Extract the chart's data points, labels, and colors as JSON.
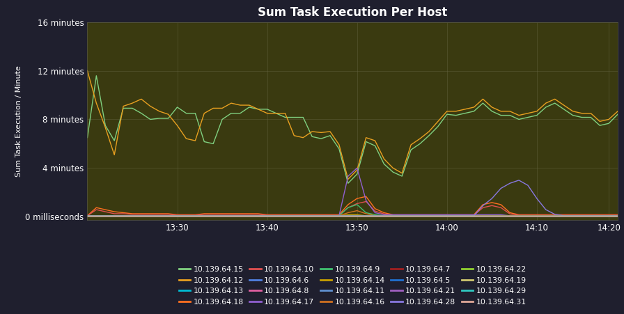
{
  "title": "Sum Task Execution Per Host",
  "ylabel": "Sum Task Execution / Minute",
  "background_color": "#1f1f2e",
  "plot_bg_color": "#3a3a10",
  "text_color": "#ffffff",
  "grid_color": "#666644",
  "yticks": [
    0,
    240,
    480,
    720,
    960
  ],
  "ytick_labels": [
    "0 milliseconds",
    "4 minutes",
    "8 minutes",
    "12 minutes",
    "16 minutes"
  ],
  "xtick_labels": [
    "13:30",
    "13:40",
    "13:50",
    "14:00",
    "14:10",
    "14:20"
  ],
  "xtick_pos": [
    10,
    20,
    30,
    40,
    50,
    58
  ],
  "xlim": [
    0,
    59
  ],
  "ylim": [
    -15,
    960
  ],
  "hosts": [
    {
      "label": "10.139.64.15",
      "color": "#80d080"
    },
    {
      "label": "10.139.64.12",
      "color": "#e8a020"
    },
    {
      "label": "10.139.64.13",
      "color": "#00bcd4"
    },
    {
      "label": "10.139.64.18",
      "color": "#ff7020"
    },
    {
      "label": "10.139.64.10",
      "color": "#e05050"
    },
    {
      "label": "10.139.64.6",
      "color": "#5080e0"
    },
    {
      "label": "10.139.64.8",
      "color": "#e060a0"
    },
    {
      "label": "10.139.64.17",
      "color": "#9060d0"
    },
    {
      "label": "10.139.64.9",
      "color": "#40c070"
    },
    {
      "label": "10.139.64.14",
      "color": "#c8a000"
    },
    {
      "label": "10.139.64.11",
      "color": "#6090d0"
    },
    {
      "label": "10.139.64.16",
      "color": "#d07020"
    },
    {
      "label": "10.139.64.7",
      "color": "#a02020"
    },
    {
      "label": "10.139.64.5",
      "color": "#2070d0"
    },
    {
      "label": "10.139.64.21",
      "color": "#a060c0"
    },
    {
      "label": "10.139.64.28",
      "color": "#8878e0"
    },
    {
      "label": "10.139.64.22",
      "color": "#90d030"
    },
    {
      "label": "10.139.64.19",
      "color": "#d0c870"
    },
    {
      "label": "10.139.64.29",
      "color": "#30c8c0"
    },
    {
      "label": "10.139.64.31",
      "color": "#e0a898"
    }
  ],
  "series": {
    "10.139.64.15": [
      390,
      695,
      450,
      375,
      535,
      535,
      510,
      480,
      485,
      485,
      540,
      510,
      510,
      370,
      360,
      480,
      510,
      510,
      540,
      530,
      530,
      510,
      490,
      490,
      490,
      395,
      385,
      400,
      335,
      165,
      210,
      370,
      350,
      260,
      220,
      200,
      330,
      360,
      400,
      445,
      505,
      500,
      510,
      520,
      560,
      520,
      500,
      500,
      480,
      490,
      500,
      540,
      560,
      530,
      500,
      490,
      490,
      450,
      460,
      505
    ],
    "10.139.64.12": [
      720,
      560,
      440,
      305,
      545,
      560,
      580,
      545,
      520,
      505,
      450,
      385,
      375,
      510,
      535,
      535,
      560,
      550,
      550,
      530,
      510,
      510,
      510,
      400,
      390,
      420,
      415,
      420,
      355,
      185,
      230,
      390,
      375,
      285,
      240,
      215,
      355,
      385,
      420,
      470,
      520,
      520,
      530,
      540,
      580,
      540,
      520,
      520,
      500,
      510,
      520,
      560,
      580,
      550,
      520,
      510,
      510,
      470,
      480,
      520
    ],
    "10.139.64.13": [
      5,
      5,
      5,
      5,
      5,
      5,
      5,
      5,
      5,
      5,
      5,
      5,
      5,
      5,
      5,
      5,
      5,
      5,
      5,
      5,
      5,
      5,
      5,
      5,
      5,
      5,
      5,
      5,
      5,
      5,
      5,
      5,
      5,
      5,
      5,
      5,
      5,
      5,
      5,
      5,
      5,
      5,
      5,
      5,
      5,
      5,
      5,
      5,
      5,
      5,
      5,
      5,
      5,
      5,
      5,
      5,
      5,
      5,
      5,
      5
    ],
    "10.139.64.18": [
      5,
      45,
      35,
      25,
      20,
      15,
      15,
      15,
      15,
      15,
      10,
      10,
      10,
      15,
      15,
      15,
      15,
      15,
      15,
      15,
      10,
      10,
      10,
      10,
      10,
      10,
      10,
      10,
      10,
      60,
      90,
      100,
      40,
      20,
      10,
      10,
      10,
      10,
      10,
      10,
      10,
      10,
      10,
      10,
      60,
      70,
      60,
      20,
      10,
      10,
      10,
      10,
      10,
      10,
      10,
      10,
      10,
      10,
      10,
      10
    ],
    "10.139.64.10": [
      5,
      35,
      25,
      15,
      15,
      12,
      12,
      12,
      12,
      12,
      8,
      8,
      8,
      12,
      12,
      12,
      12,
      12,
      12,
      12,
      8,
      8,
      8,
      8,
      8,
      8,
      8,
      8,
      8,
      45,
      65,
      75,
      28,
      14,
      8,
      8,
      8,
      8,
      8,
      8,
      8,
      8,
      8,
      8,
      45,
      55,
      45,
      14,
      8,
      8,
      8,
      8,
      8,
      8,
      8,
      8,
      8,
      8,
      8,
      8
    ],
    "10.139.64.6": [
      5,
      5,
      5,
      5,
      5,
      5,
      5,
      5,
      5,
      5,
      5,
      5,
      5,
      5,
      5,
      5,
      5,
      5,
      5,
      5,
      5,
      5,
      5,
      5,
      5,
      5,
      5,
      5,
      5,
      5,
      5,
      5,
      5,
      5,
      5,
      5,
      5,
      5,
      5,
      5,
      5,
      5,
      5,
      5,
      5,
      5,
      5,
      5,
      5,
      5,
      5,
      5,
      5,
      5,
      5,
      5,
      5,
      5,
      5,
      5
    ],
    "10.139.64.8": [
      5,
      5,
      5,
      5,
      5,
      5,
      5,
      5,
      5,
      5,
      5,
      5,
      5,
      5,
      5,
      5,
      5,
      5,
      5,
      5,
      5,
      5,
      5,
      5,
      5,
      5,
      5,
      5,
      5,
      5,
      5,
      5,
      5,
      5,
      5,
      5,
      5,
      5,
      5,
      5,
      5,
      5,
      5,
      5,
      5,
      5,
      5,
      5,
      5,
      5,
      5,
      5,
      5,
      5,
      5,
      5,
      5,
      5,
      5,
      5
    ],
    "10.139.64.17": [
      5,
      5,
      5,
      5,
      5,
      5,
      5,
      5,
      5,
      5,
      5,
      5,
      5,
      5,
      5,
      5,
      5,
      5,
      5,
      5,
      5,
      5,
      5,
      5,
      5,
      5,
      5,
      5,
      5,
      200,
      240,
      80,
      20,
      10,
      10,
      10,
      10,
      10,
      10,
      10,
      10,
      10,
      10,
      10,
      10,
      10,
      10,
      5,
      5,
      5,
      5,
      5,
      5,
      5,
      5,
      5,
      5,
      5,
      5,
      5
    ],
    "10.139.64.9": [
      5,
      5,
      5,
      5,
      5,
      5,
      5,
      5,
      5,
      5,
      5,
      5,
      5,
      5,
      5,
      5,
      5,
      5,
      5,
      5,
      5,
      5,
      5,
      5,
      5,
      5,
      5,
      5,
      5,
      45,
      60,
      20,
      10,
      5,
      5,
      5,
      5,
      5,
      5,
      5,
      5,
      5,
      5,
      5,
      5,
      5,
      5,
      5,
      5,
      5,
      5,
      5,
      5,
      5,
      5,
      5,
      5,
      5,
      5,
      5
    ],
    "10.139.64.14": [
      5,
      5,
      5,
      5,
      5,
      5,
      5,
      5,
      5,
      5,
      5,
      5,
      5,
      5,
      5,
      5,
      5,
      5,
      5,
      5,
      5,
      5,
      5,
      5,
      5,
      5,
      5,
      5,
      5,
      10,
      10,
      5,
      5,
      5,
      5,
      5,
      5,
      5,
      5,
      5,
      5,
      5,
      5,
      5,
      5,
      5,
      5,
      5,
      5,
      5,
      5,
      5,
      5,
      5,
      5,
      5,
      5,
      5,
      5,
      5
    ],
    "10.139.64.11": [
      5,
      5,
      5,
      5,
      5,
      5,
      5,
      5,
      5,
      5,
      5,
      5,
      5,
      5,
      5,
      5,
      5,
      5,
      5,
      5,
      5,
      5,
      5,
      5,
      5,
      5,
      5,
      5,
      5,
      5,
      5,
      5,
      5,
      5,
      5,
      5,
      5,
      5,
      5,
      5,
      5,
      5,
      5,
      5,
      5,
      5,
      5,
      5,
      5,
      5,
      5,
      5,
      5,
      5,
      5,
      5,
      5,
      5,
      5,
      5
    ],
    "10.139.64.16": [
      5,
      5,
      5,
      5,
      5,
      5,
      5,
      5,
      5,
      5,
      5,
      5,
      5,
      5,
      5,
      5,
      5,
      5,
      5,
      5,
      5,
      5,
      5,
      5,
      5,
      5,
      5,
      5,
      5,
      20,
      30,
      15,
      5,
      5,
      5,
      5,
      5,
      5,
      5,
      5,
      5,
      5,
      5,
      5,
      5,
      5,
      5,
      5,
      5,
      5,
      5,
      5,
      5,
      5,
      5,
      5,
      5,
      5,
      5,
      5
    ],
    "10.139.64.7": [
      5,
      5,
      5,
      5,
      5,
      5,
      5,
      5,
      5,
      5,
      5,
      5,
      5,
      5,
      5,
      5,
      5,
      5,
      5,
      5,
      5,
      5,
      5,
      5,
      5,
      5,
      5,
      5,
      5,
      5,
      5,
      5,
      5,
      5,
      5,
      5,
      5,
      5,
      5,
      5,
      5,
      5,
      5,
      5,
      5,
      5,
      5,
      5,
      5,
      5,
      5,
      5,
      5,
      5,
      5,
      5,
      5,
      5,
      5,
      5
    ],
    "10.139.64.5": [
      5,
      5,
      5,
      5,
      5,
      5,
      5,
      5,
      5,
      5,
      5,
      5,
      5,
      5,
      5,
      5,
      5,
      5,
      5,
      5,
      5,
      5,
      5,
      5,
      5,
      5,
      5,
      5,
      5,
      5,
      5,
      5,
      5,
      5,
      5,
      5,
      5,
      5,
      5,
      5,
      5,
      5,
      5,
      5,
      5,
      5,
      5,
      5,
      5,
      5,
      5,
      5,
      5,
      5,
      5,
      5,
      5,
      5,
      5,
      5
    ],
    "10.139.64.21": [
      5,
      5,
      5,
      5,
      5,
      5,
      5,
      5,
      5,
      5,
      5,
      5,
      5,
      5,
      5,
      5,
      5,
      5,
      5,
      5,
      5,
      5,
      5,
      5,
      5,
      5,
      5,
      5,
      5,
      5,
      5,
      5,
      5,
      5,
      5,
      5,
      5,
      5,
      5,
      5,
      5,
      5,
      5,
      5,
      5,
      5,
      5,
      5,
      5,
      5,
      5,
      5,
      5,
      5,
      5,
      5,
      5,
      5,
      5,
      5
    ],
    "10.139.64.28": [
      5,
      5,
      5,
      5,
      5,
      5,
      5,
      5,
      5,
      5,
      5,
      5,
      5,
      5,
      5,
      5,
      5,
      5,
      5,
      5,
      5,
      5,
      5,
      5,
      5,
      5,
      5,
      5,
      5,
      5,
      5,
      5,
      5,
      5,
      5,
      5,
      5,
      5,
      5,
      5,
      5,
      5,
      5,
      5,
      55,
      90,
      140,
      165,
      180,
      155,
      90,
      35,
      12,
      5,
      5,
      5,
      5,
      5,
      5,
      5
    ],
    "10.139.64.22": [
      5,
      5,
      5,
      5,
      5,
      5,
      5,
      5,
      5,
      5,
      5,
      5,
      5,
      5,
      5,
      5,
      5,
      5,
      5,
      5,
      5,
      5,
      5,
      5,
      5,
      5,
      5,
      5,
      5,
      5,
      5,
      5,
      5,
      5,
      5,
      5,
      5,
      5,
      5,
      5,
      5,
      5,
      5,
      5,
      5,
      5,
      5,
      5,
      5,
      5,
      5,
      5,
      5,
      5,
      5,
      5,
      5,
      5,
      5,
      5
    ],
    "10.139.64.19": [
      5,
      5,
      5,
      5,
      5,
      5,
      5,
      5,
      5,
      5,
      5,
      5,
      5,
      5,
      5,
      5,
      5,
      5,
      5,
      5,
      5,
      5,
      5,
      5,
      5,
      5,
      5,
      5,
      5,
      5,
      5,
      5,
      5,
      5,
      5,
      5,
      5,
      5,
      5,
      5,
      5,
      5,
      5,
      5,
      5,
      5,
      5,
      5,
      5,
      5,
      5,
      5,
      5,
      5,
      5,
      5,
      5,
      5,
      5,
      5
    ],
    "10.139.64.29": [
      5,
      5,
      5,
      5,
      5,
      5,
      5,
      5,
      5,
      5,
      5,
      5,
      5,
      5,
      5,
      5,
      5,
      5,
      5,
      5,
      5,
      5,
      5,
      5,
      5,
      5,
      5,
      5,
      5,
      5,
      5,
      5,
      5,
      5,
      5,
      5,
      5,
      5,
      5,
      5,
      5,
      5,
      5,
      5,
      5,
      5,
      5,
      5,
      5,
      5,
      5,
      5,
      5,
      5,
      5,
      5,
      5,
      5,
      5,
      5
    ],
    "10.139.64.31": [
      5,
      5,
      5,
      5,
      5,
      5,
      5,
      5,
      5,
      5,
      5,
      5,
      5,
      5,
      5,
      5,
      5,
      5,
      5,
      5,
      5,
      5,
      5,
      5,
      5,
      5,
      5,
      5,
      5,
      5,
      5,
      5,
      5,
      5,
      5,
      5,
      5,
      5,
      5,
      5,
      5,
      5,
      5,
      5,
      5,
      5,
      5,
      5,
      5,
      5,
      5,
      5,
      5,
      5,
      5,
      5,
      5,
      5,
      5,
      5
    ]
  }
}
